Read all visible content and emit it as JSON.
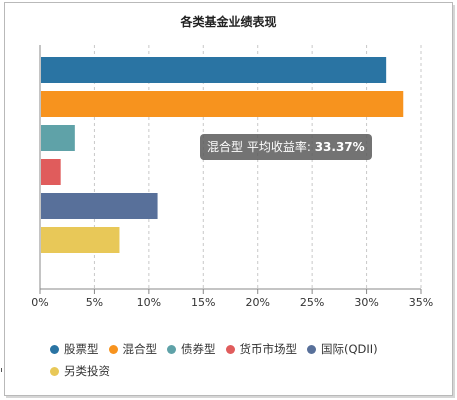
{
  "chart_data": {
    "type": "bar",
    "orientation": "horizontal",
    "title": "各类基金业绩表现",
    "categories": [
      "股票型",
      "混合型",
      "债券型",
      "货币市场型",
      "国际(QDII)",
      "另类投资"
    ],
    "values": [
      31.8,
      33.37,
      3.2,
      1.9,
      10.8,
      7.3
    ],
    "colors": [
      "#2a74a3",
      "#f7931e",
      "#5fa2a8",
      "#e05c5c",
      "#58709a",
      "#e8c858"
    ],
    "xlim": [
      0,
      35
    ],
    "ticks": [
      0,
      5,
      10,
      15,
      20,
      25,
      30,
      35
    ],
    "tick_format": "percent",
    "grid": "vertical-dashed",
    "legend_position": "bottom",
    "tooltip": {
      "label": "混合型 平均收益率: ",
      "value": "33.37%"
    }
  }
}
